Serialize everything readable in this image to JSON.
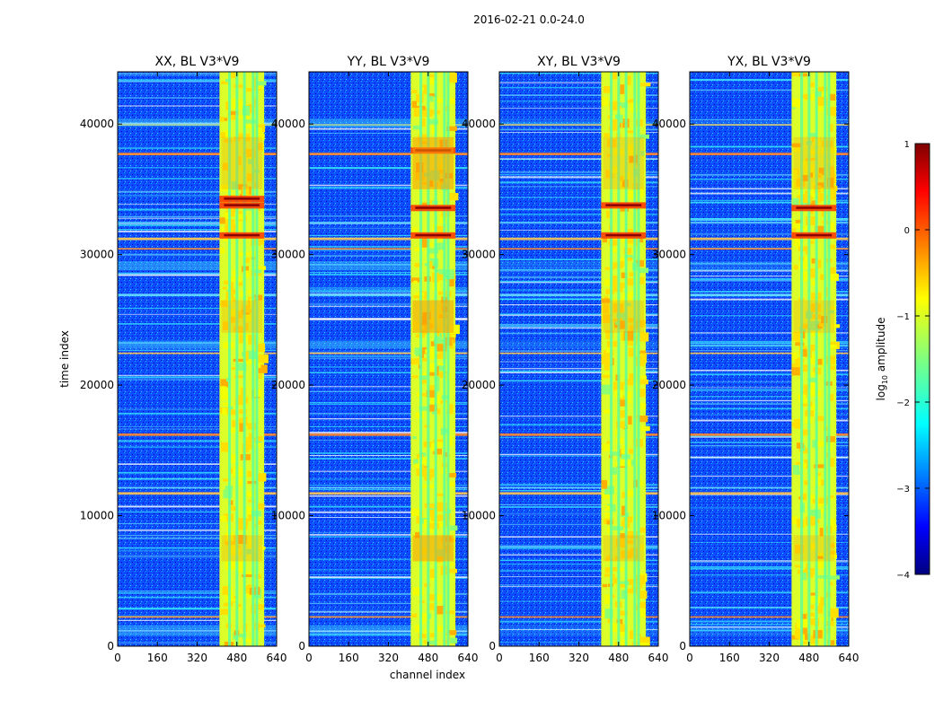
{
  "chart_data": {
    "type": "heatmap",
    "suptitle": "2016-02-21 0.0-24.0",
    "xlabel": "channel index",
    "ylabel": "time index",
    "xlim": [
      0,
      640
    ],
    "ylim": [
      0,
      44000
    ],
    "xticks": [
      "0",
      "160",
      "320",
      "480",
      "640"
    ],
    "yticks": [
      "0",
      "10000",
      "20000",
      "30000",
      "40000"
    ],
    "panels": [
      {
        "title": "XX, BL V3*V9",
        "polarization": "XX"
      },
      {
        "title": "YY, BL V3*V9",
        "polarization": "YY"
      },
      {
        "title": "XY, BL V3*V9",
        "polarization": "XY"
      },
      {
        "title": "YX, BL V3*V9",
        "polarization": "YX"
      }
    ],
    "colorbar": {
      "label": "log10 amplitude",
      "label_base": "log",
      "label_sub": "10",
      "label_rest": " amplitude",
      "range": [
        -4,
        1
      ],
      "ticks": [
        "1",
        "0",
        "−1",
        "−2",
        "−3",
        "−4"
      ],
      "colormap": "jet"
    },
    "features": {
      "band_channels": [
        410,
        590
      ],
      "column_gaps": [
        445,
        475,
        505,
        540,
        555
      ],
      "strong_rows": [
        2300,
        11800,
        12200,
        16300,
        22500,
        27000,
        30500,
        31300,
        32500,
        37800,
        40000
      ],
      "hot_rows_xx": [
        31500,
        33800,
        34300
      ],
      "hot_rows_yy": [
        31500,
        33600,
        38000
      ],
      "hot_rows_xy": [
        31500,
        33800
      ],
      "hot_rows_yx": [
        31500,
        33600
      ]
    }
  }
}
